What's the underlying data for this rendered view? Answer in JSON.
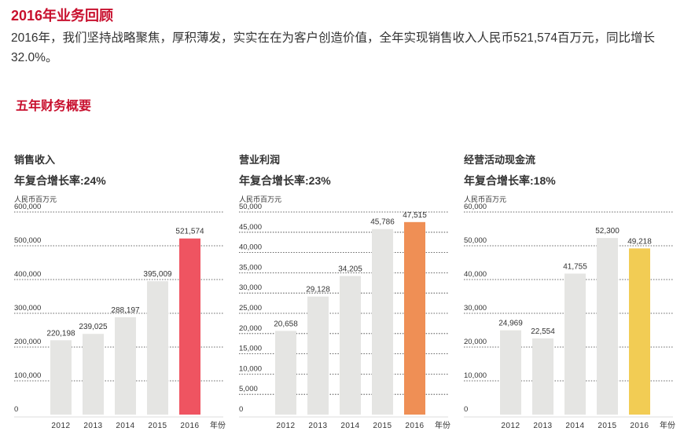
{
  "header": {
    "title": "2016年业务回顾",
    "intro": "2016年，我们坚持战略聚焦，厚积薄发，实实在在为客户创造价值，全年实现销售收入人民币521,574百万元，同比增长32.0%。"
  },
  "section": {
    "title": "五年财务概要"
  },
  "chart_data": [
    {
      "type": "bar",
      "title": "销售收入",
      "subtitle": "年复合增长率:24%",
      "ylabel": "人民币百万元",
      "xlabel": "年份",
      "categories": [
        "2012",
        "2013",
        "2014",
        "2015",
        "2016"
      ],
      "values": [
        220198,
        239025,
        288197,
        395009,
        521574
      ],
      "value_labels": [
        "220,198",
        "239,025",
        "288,197",
        "395,009",
        "521,574"
      ],
      "ylim": [
        0,
        600000
      ],
      "yticks": [
        0,
        100000,
        200000,
        300000,
        400000,
        500000,
        600000
      ],
      "ytick_labels": [
        "0",
        "100,000",
        "200,000",
        "300,000",
        "400,000",
        "500,000",
        "600,000"
      ],
      "grid": "dotted-horizontal",
      "colors": {
        "bar": "#e5e5e3",
        "highlight": "#ef5461"
      }
    },
    {
      "type": "bar",
      "title": "营业利润",
      "subtitle": "年复合增长率:23%",
      "ylabel": "人民币百万元",
      "xlabel": "年份",
      "categories": [
        "2012",
        "2013",
        "2014",
        "2015",
        "2016"
      ],
      "values": [
        20658,
        29128,
        34205,
        45786,
        47515
      ],
      "value_labels": [
        "20,658",
        "29,128",
        "34,205",
        "45,786",
        "47,515"
      ],
      "ylim": [
        0,
        50000
      ],
      "yticks": [
        0,
        5000,
        10000,
        15000,
        20000,
        25000,
        30000,
        35000,
        40000,
        45000,
        50000
      ],
      "ytick_labels": [
        "0",
        "5,000",
        "10,000",
        "15,000",
        "20,000",
        "25,000",
        "30,000",
        "35,000",
        "40,000",
        "45,000",
        "50,000"
      ],
      "grid": "dotted-horizontal",
      "colors": {
        "bar": "#e5e5e3",
        "highlight": "#ef8f55"
      }
    },
    {
      "type": "bar",
      "title": "经营活动现金流",
      "subtitle": "年复合增长率:18%",
      "ylabel": "人民币百万元",
      "xlabel": "年份",
      "categories": [
        "2012",
        "2013",
        "2014",
        "2015",
        "2016"
      ],
      "values": [
        24969,
        22554,
        41755,
        52300,
        49218
      ],
      "value_labels": [
        "24,969",
        "22,554",
        "41,755",
        "52,300",
        "49,218"
      ],
      "ylim": [
        0,
        60000
      ],
      "yticks": [
        0,
        10000,
        20000,
        30000,
        40000,
        50000,
        60000
      ],
      "ytick_labels": [
        "0",
        "10,000",
        "20,000",
        "30,000",
        "40,000",
        "50,000",
        "60,000"
      ],
      "grid": "dotted-horizontal",
      "colors": {
        "bar": "#e5e5e3",
        "highlight": "#f2cc54"
      }
    }
  ]
}
